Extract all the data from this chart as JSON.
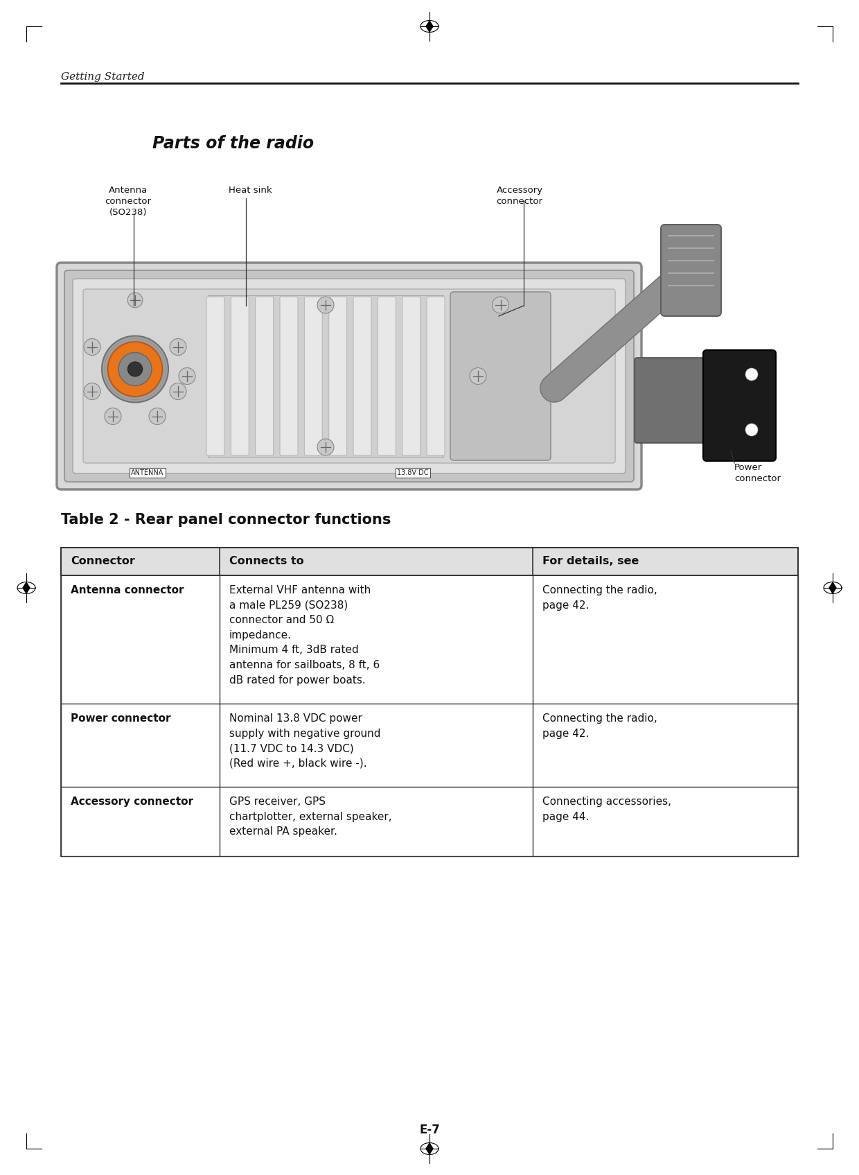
{
  "page_bg": "#ffffff",
  "header_text": "Getting Started",
  "title_text": "Parts of the radio",
  "page_number": "E-7",
  "table_title": "Table 2 - Rear panel connector functions",
  "table_headers": [
    "Connector",
    "Connects to",
    "For details, see"
  ],
  "table_rows": [
    {
      "col1": "Antenna connector",
      "col2": "External VHF antenna with\na male PL259 (SO238)\nconnector and 50 Ω\nimpedance.\nMinimum 4 ft, 3dB rated\nantenna for sailboats, 8 ft, 6\ndB rated for power boats.",
      "col3": "Connecting the radio,\npage 42."
    },
    {
      "col1": "Power connector",
      "col2": "Nominal 13.8 VDC power\nsupply with negative ground\n(11.7 VDC to 14.3 VDC)\n(Red wire +, black wire -).",
      "col3": "Connecting the radio,\npage 42."
    },
    {
      "col1": "Accessory connector",
      "col2": "GPS receiver, GPS\nchartplotter, external speaker,\nexternal PA speaker.",
      "col3": "Connecting accessories,\npage 44."
    }
  ],
  "label_antenna_connector": "Antenna\nconnector\n(SO238)",
  "label_heat_sink": "Heat sink",
  "label_accessory_connector": "Accessory\nconnector",
  "label_power_connector": "Power\nconnector",
  "label_antenna_text": "ANTENNA",
  "label_138vdc_text": "13.8V DC"
}
